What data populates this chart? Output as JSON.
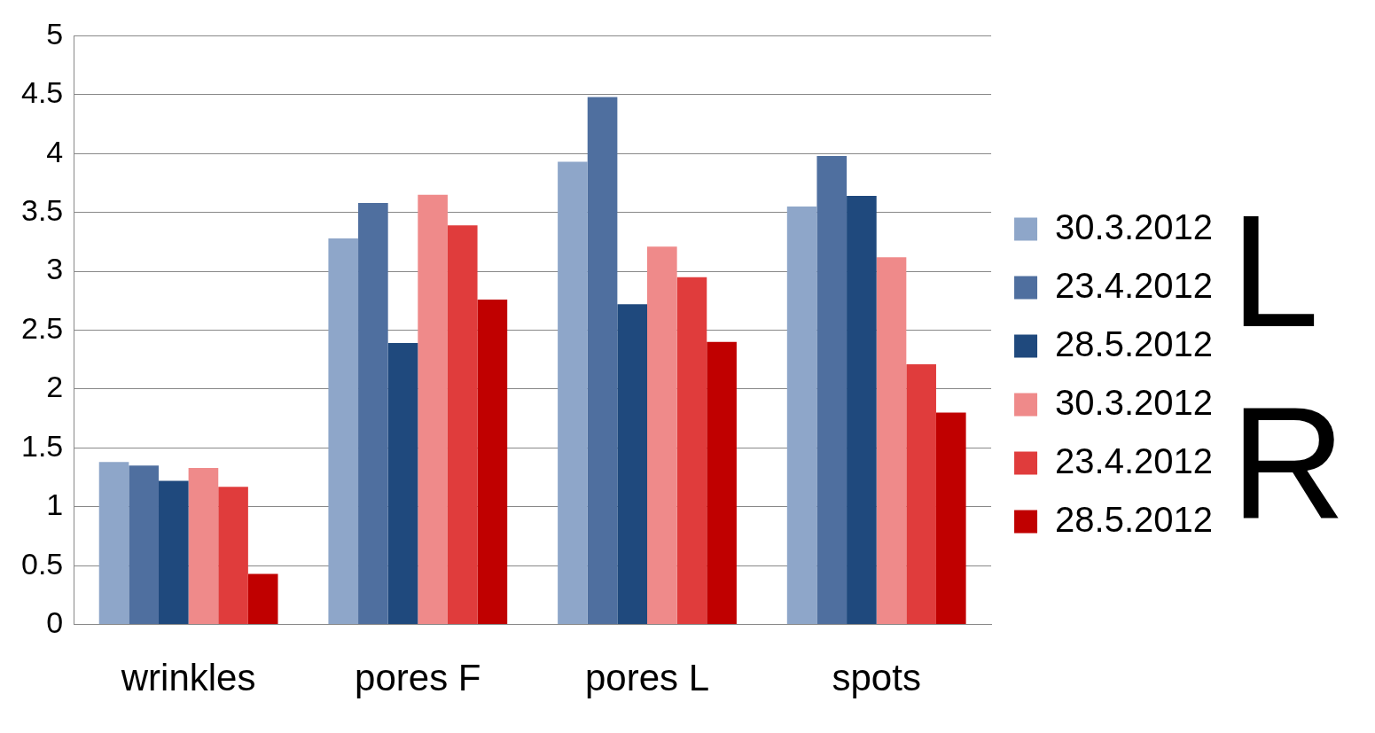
{
  "chart_data": {
    "type": "bar",
    "categories": [
      "wrinkles",
      "pores F",
      "pores L",
      "spots"
    ],
    "series": [
      {
        "name": "30.3.2012",
        "color": "#8ea6c9",
        "values": [
          1.38,
          3.28,
          3.93,
          3.55
        ]
      },
      {
        "name": "23.4.2012",
        "color": "#4f6f9f",
        "values": [
          1.35,
          3.58,
          4.48,
          3.98
        ]
      },
      {
        "name": "28.5.2012",
        "color": "#1f497d",
        "values": [
          1.22,
          2.39,
          2.72,
          3.64
        ]
      },
      {
        "name": "30.3.2012",
        "color": "#ef8a8a",
        "values": [
          1.33,
          3.65,
          3.21,
          3.12
        ]
      },
      {
        "name": "23.4.2012",
        "color": "#e03c3c",
        "values": [
          1.17,
          3.39,
          2.95,
          2.21
        ]
      },
      {
        "name": "28.5.2012",
        "color": "#c00000",
        "values": [
          0.43,
          2.76,
          2.4,
          1.8
        ]
      }
    ],
    "ylim": [
      0,
      5
    ],
    "yticks": [
      0,
      0.5,
      1,
      1.5,
      2,
      2.5,
      3,
      3.5,
      4,
      4.5,
      5
    ],
    "grid": "y",
    "legend": "right",
    "annotations": [
      "L",
      "R"
    ]
  }
}
